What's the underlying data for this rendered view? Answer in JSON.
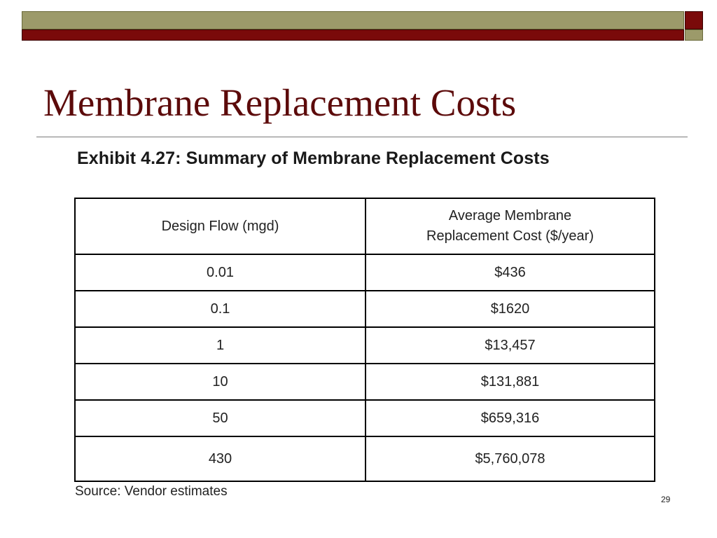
{
  "theme": {
    "olive": "#9c9a6a",
    "maroon": "#7a0a0a",
    "title_color": "#5c0a0a"
  },
  "slide": {
    "title": "Membrane Replacement Costs",
    "exhibit_heading": "Exhibit 4.27: Summary of Membrane Replacement Costs",
    "source_note": "Source: Vendor estimates",
    "slide_number": "29"
  },
  "table": {
    "headers": {
      "design_flow": "Design Flow (mgd)",
      "cost_line1": "Average Membrane",
      "cost_line2": "Replacement Cost ($/year)"
    },
    "rows": [
      {
        "flow": "0.01",
        "cost": "$436"
      },
      {
        "flow": "0.1",
        "cost": "$1620"
      },
      {
        "flow": "1",
        "cost": "$13,457"
      },
      {
        "flow": "10",
        "cost": "$131,881"
      },
      {
        "flow": "50",
        "cost": "$659,316"
      },
      {
        "flow": "430",
        "cost": "$5,760,078"
      }
    ]
  }
}
